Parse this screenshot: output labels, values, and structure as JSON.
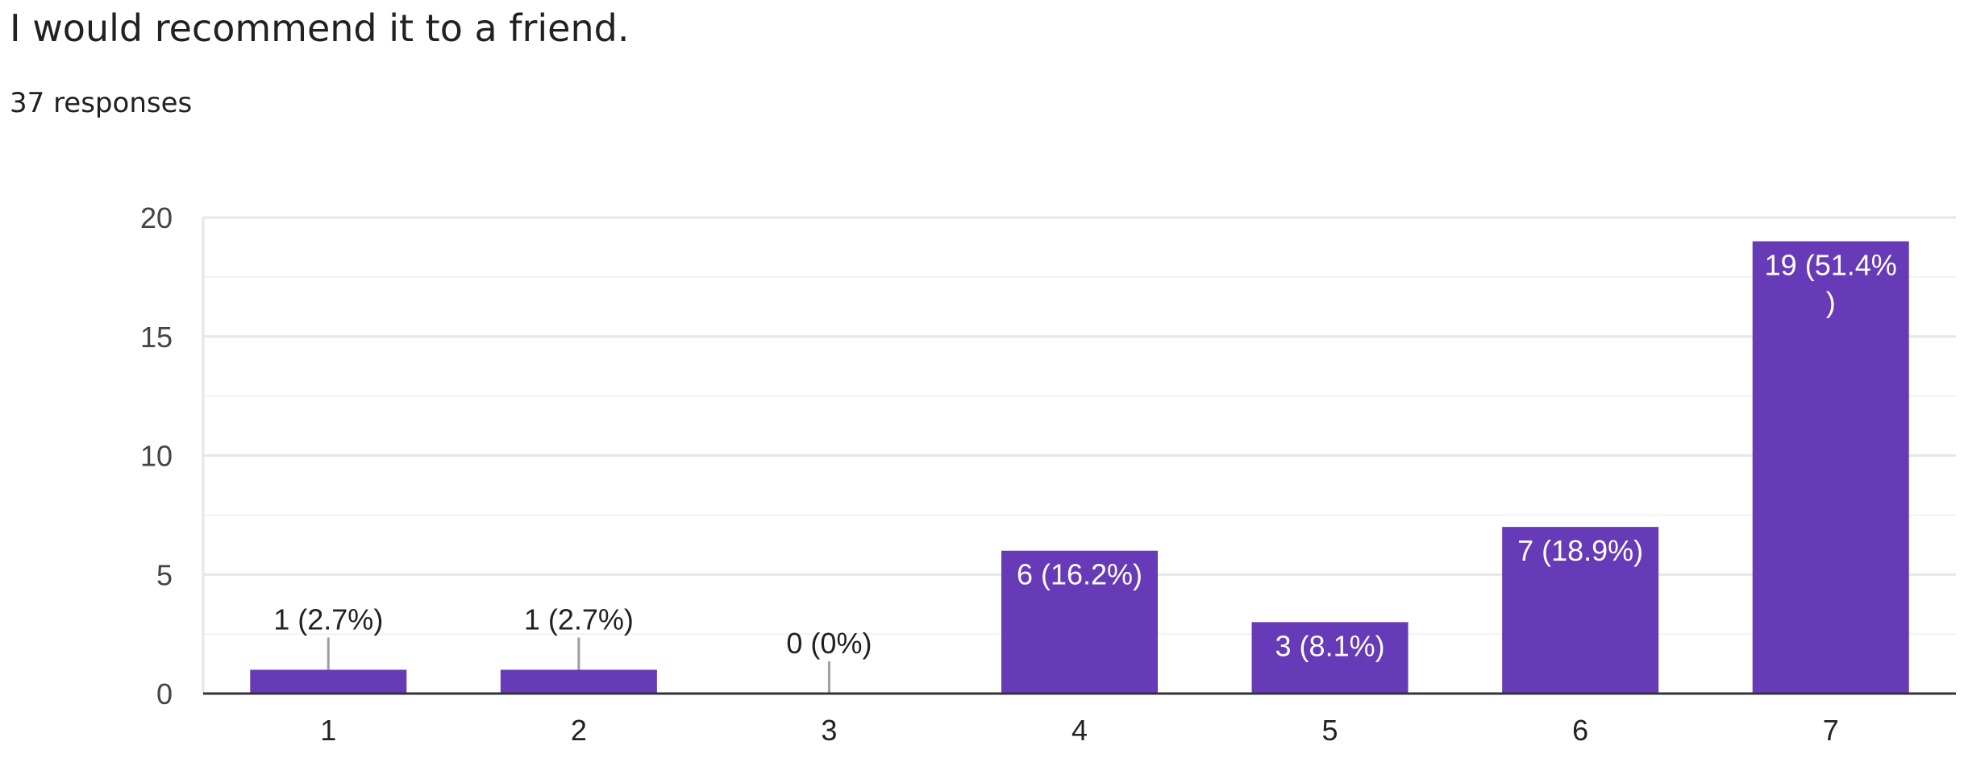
{
  "header": {
    "question": "I would recommend it to a friend.",
    "responses": "37 responses"
  },
  "colors": {
    "bar": "#673ab7",
    "grid_major": "#e6e6e6",
    "grid_minor": "#f3f3f3",
    "axis": "#333333",
    "label_outside": "#202124",
    "label_inside": "#ffffff",
    "leader": "#9e9e9e"
  },
  "chart_data": {
    "type": "bar",
    "categories": [
      "1",
      "2",
      "3",
      "4",
      "5",
      "6",
      "7"
    ],
    "values": [
      1,
      1,
      0,
      6,
      3,
      7,
      19
    ],
    "data_labels": [
      "1 (2.7%)",
      "1 (2.7%)",
      "0 (0%)",
      "6 (16.2%)",
      "3 (8.1%)",
      "7 (18.9%)",
      "19 (51.4%)"
    ],
    "title": "I would recommend it to a friend.",
    "subtitle": "37 responses",
    "xlabel": "",
    "ylabel": "",
    "ylim": [
      0,
      20
    ],
    "yticks": [
      0,
      5,
      10,
      15,
      20
    ],
    "ytick_labels": [
      "0",
      "5",
      "10",
      "15",
      "20"
    ],
    "grid": true,
    "legend": "none"
  }
}
